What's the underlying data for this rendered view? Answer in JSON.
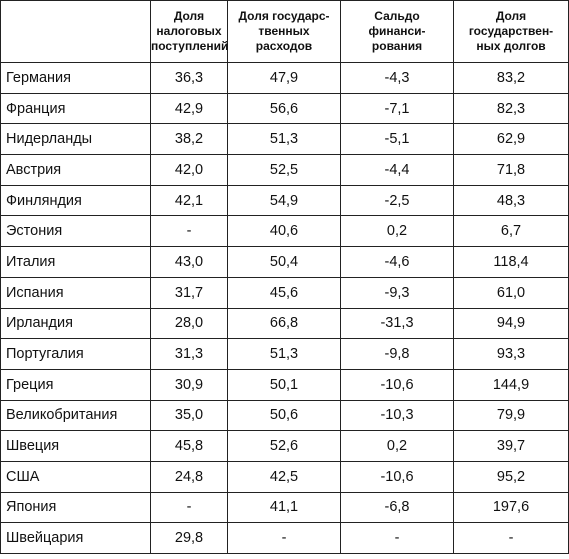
{
  "headers": [
    "",
    "Доля\nналоговых\nпоступлений",
    "Доля государс-\nтвенных\nрасходов",
    "Сальдо\nфинанси-\nрования",
    "Доля\nгосударствен-\nных долгов"
  ],
  "rows": [
    [
      "Германия",
      "36,3",
      "47,9",
      "-4,3",
      "83,2"
    ],
    [
      "Франция",
      "42,9",
      "56,6",
      "-7,1",
      "82,3"
    ],
    [
      "Нидерланды",
      "38,2",
      "51,3",
      "-5,1",
      "62,9"
    ],
    [
      "Австрия",
      "42,0",
      "52,5",
      "-4,4",
      "71,8"
    ],
    [
      "Финляндия",
      "42,1",
      "54,9",
      "-2,5",
      "48,3"
    ],
    [
      "Эстония",
      "-",
      "40,6",
      "0,2",
      "6,7"
    ],
    [
      "Италия",
      "43,0",
      "50,4",
      "-4,6",
      "118,4"
    ],
    [
      "Испания",
      "31,7",
      "45,6",
      "-9,3",
      "61,0"
    ],
    [
      "Ирландия",
      "28,0",
      "66,8",
      "-31,3",
      "94,9"
    ],
    [
      "Португалия",
      "31,3",
      "51,3",
      "-9,8",
      "93,3"
    ],
    [
      "Греция",
      "30,9",
      "50,1",
      "-10,6",
      "144,9"
    ],
    [
      "Великобритания",
      "35,0",
      "50,6",
      "-10,3",
      "79,9"
    ],
    [
      "Швеция",
      "45,8",
      "52,6",
      "0,2",
      "39,7"
    ],
    [
      "США",
      "24,8",
      "42,5",
      "-10,6",
      "95,2"
    ],
    [
      "Япония",
      "-",
      "41,1",
      "-6,8",
      "197,6"
    ],
    [
      "Швейцария",
      "29,8",
      "-",
      "-",
      "-"
    ]
  ]
}
